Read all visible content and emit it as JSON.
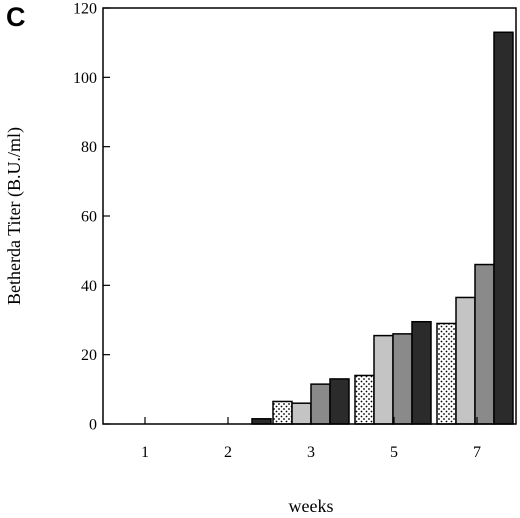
{
  "panel_label": "C",
  "chart_data": {
    "type": "bar",
    "title": "",
    "xlabel": "weeks",
    "ylabel": "Betherda Titer (B.U./ml)",
    "ylim": [
      0,
      120
    ],
    "yticks": [
      0,
      20,
      40,
      60,
      80,
      100,
      120
    ],
    "categories": [
      "1",
      "2",
      "3",
      "5",
      "7"
    ],
    "grid": false,
    "legend": "none",
    "series": [
      {
        "values": [
          0,
          0,
          6.5,
          14,
          29
        ],
        "fill": "dotted",
        "color": "#ffffff"
      },
      {
        "values": [
          0,
          0,
          6,
          25.5,
          36.5
        ],
        "fill": "solid",
        "color": "#c4c4c4"
      },
      {
        "values": [
          0,
          0,
          11.5,
          26,
          46
        ],
        "fill": "solid",
        "color": "#8a8a8a"
      },
      {
        "values": [
          0,
          1.5,
          13,
          29.5,
          113
        ],
        "fill": "solid",
        "color": "#2b2b2b"
      }
    ]
  }
}
